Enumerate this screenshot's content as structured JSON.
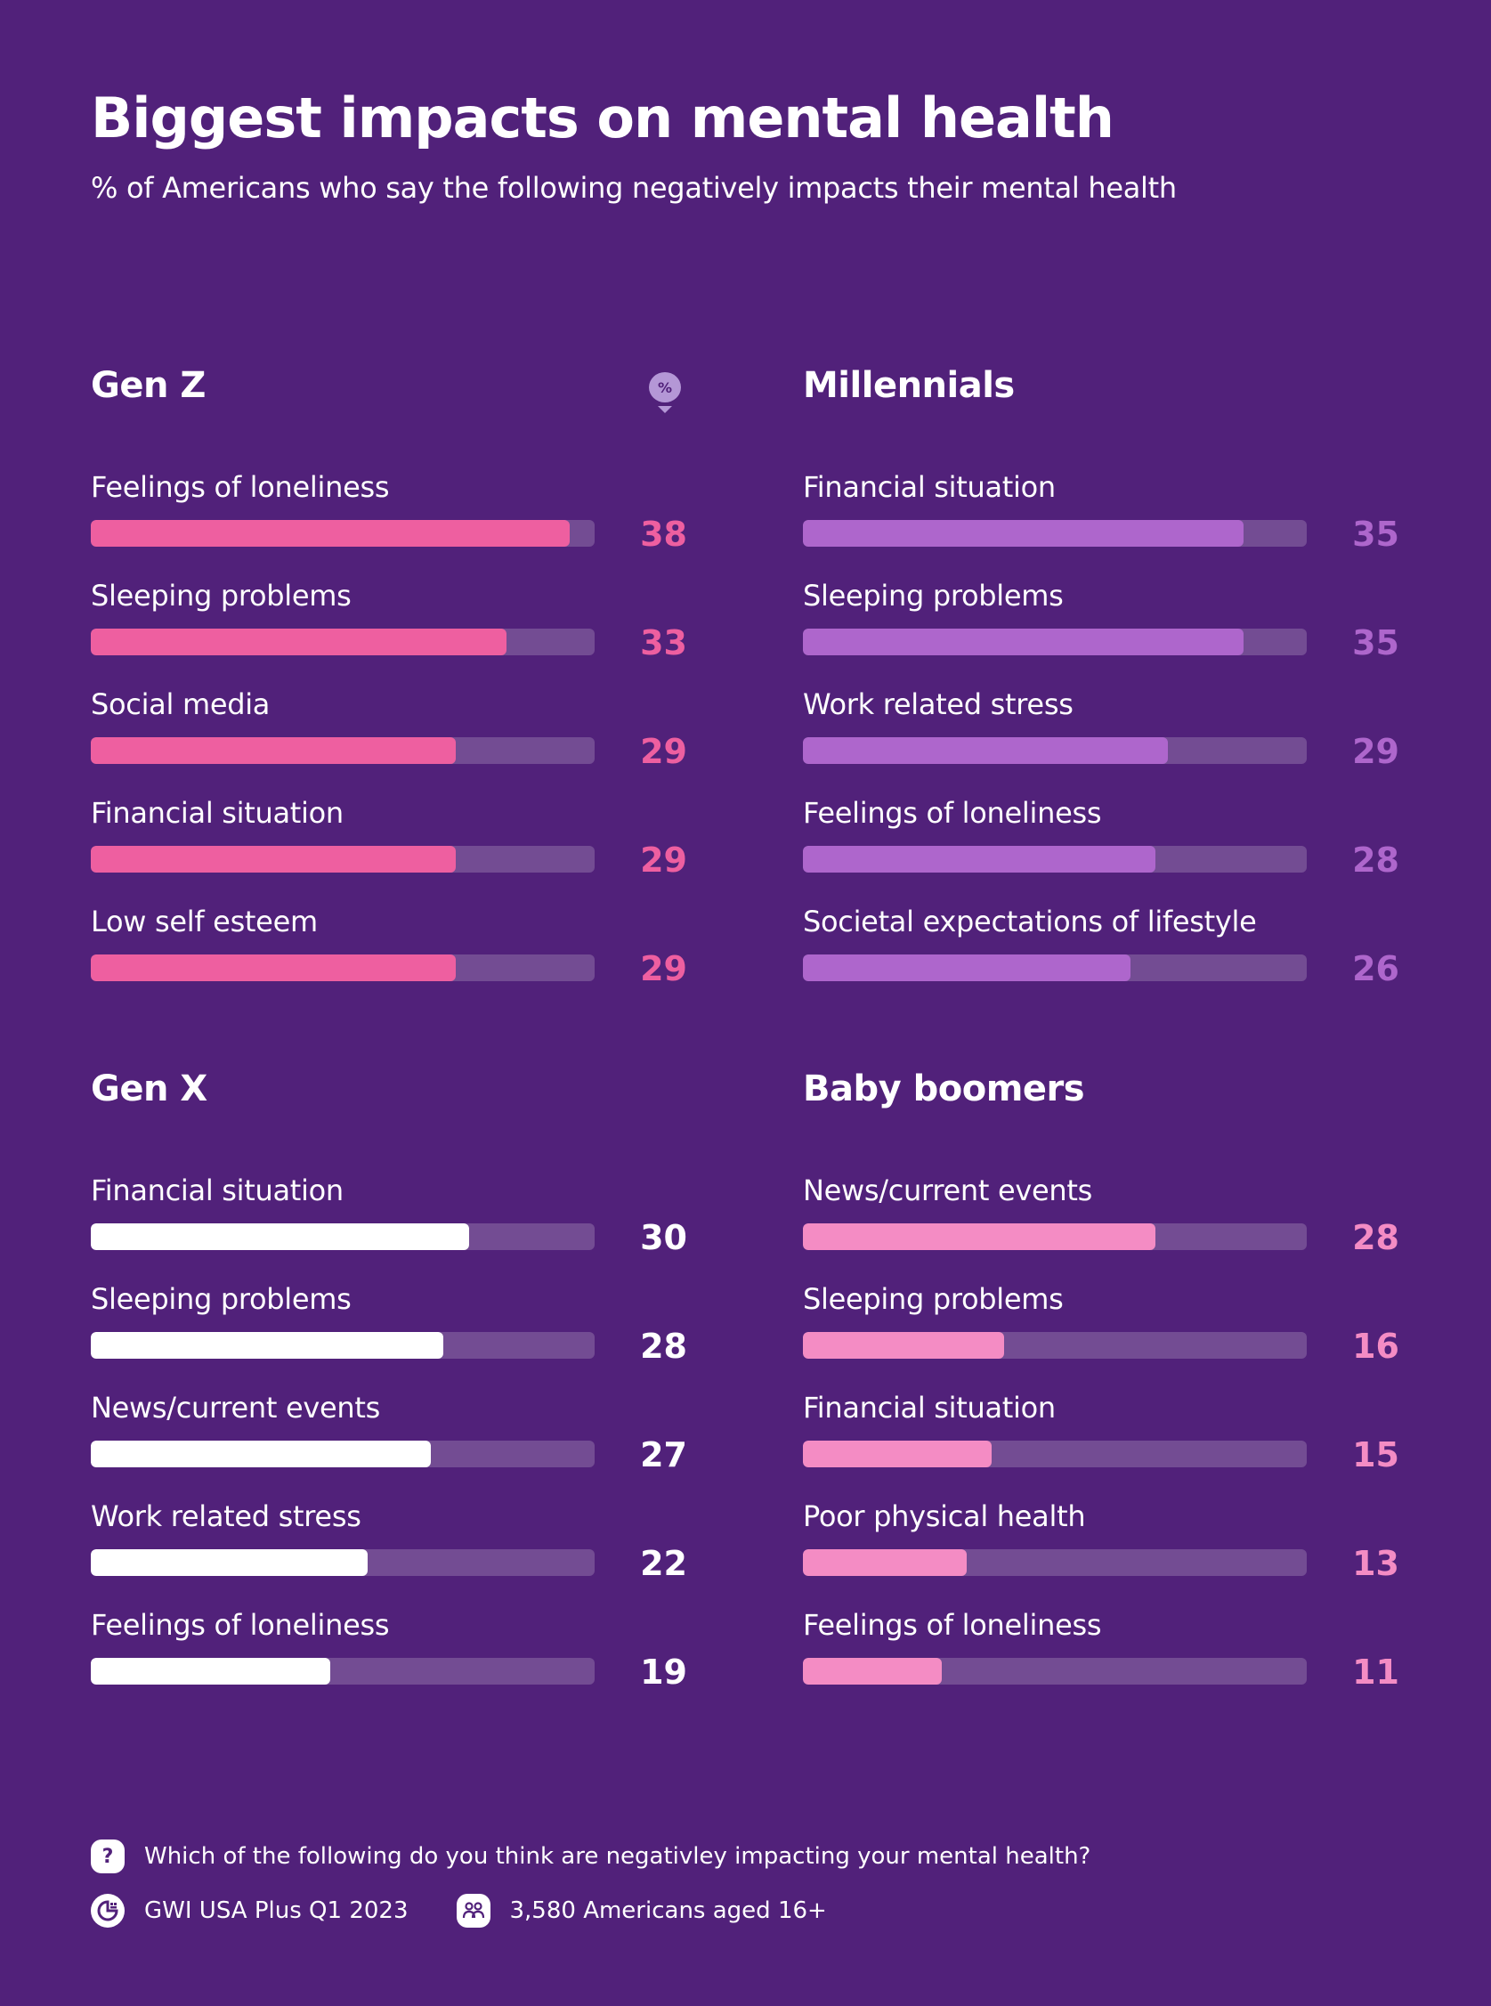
{
  "header": {
    "title": "Biggest impacts on mental health",
    "subtitle": "% of Americans who say the following negatively impacts their mental health"
  },
  "colors": {
    "background": "#51217A",
    "track": "#734C93",
    "gen_z": "#EE5FA0",
    "millennials": "#AE66CC",
    "gen_x": "#FFFFFF",
    "baby_boomers": "#F48CC4"
  },
  "badge": {
    "symbol": "%",
    "icon": "percent-marker-icon"
  },
  "chart_data": [
    {
      "type": "bar",
      "title": "Gen Z",
      "orientation": "horizontal",
      "xlim": [
        0,
        40
      ],
      "categories": [
        "Feelings of loneliness",
        "Sleeping problems",
        "Social media",
        "Financial situation",
        "Low self esteem"
      ],
      "values": [
        38,
        33,
        29,
        29,
        29
      ],
      "color": "#EE5FA0"
    },
    {
      "type": "bar",
      "title": "Millennials",
      "orientation": "horizontal",
      "xlim": [
        0,
        40
      ],
      "categories": [
        "Financial situation",
        "Sleeping problems",
        "Work related stress",
        "Feelings of loneliness",
        "Societal expectations of lifestyle"
      ],
      "values": [
        35,
        35,
        29,
        28,
        26
      ],
      "color": "#AE66CC"
    },
    {
      "type": "bar",
      "title": "Gen X",
      "orientation": "horizontal",
      "xlim": [
        0,
        40
      ],
      "categories": [
        "Financial situation",
        "Sleeping problems",
        "News/current events",
        "Work related stress",
        "Feelings of loneliness"
      ],
      "values": [
        30,
        28,
        27,
        22,
        19
      ],
      "color": "#FFFFFF"
    },
    {
      "type": "bar",
      "title": "Baby boomers",
      "orientation": "horizontal",
      "xlim": [
        0,
        40
      ],
      "categories": [
        "News/current events",
        "Sleeping problems",
        "Financial situation",
        "Poor physical health",
        "Feelings of loneliness"
      ],
      "values": [
        28,
        16,
        15,
        13,
        11
      ],
      "color": "#F48CC4"
    }
  ],
  "footer": {
    "question": {
      "icon": "question-icon",
      "symbol": "?",
      "text": "Which of the following do you think are negativley impacting your mental health?"
    },
    "source": {
      "icon": "gwi-logo-icon",
      "text": "GWI USA Plus Q1 2023"
    },
    "sample": {
      "icon": "people-icon",
      "text": "3,580 Americans aged 16+"
    }
  }
}
